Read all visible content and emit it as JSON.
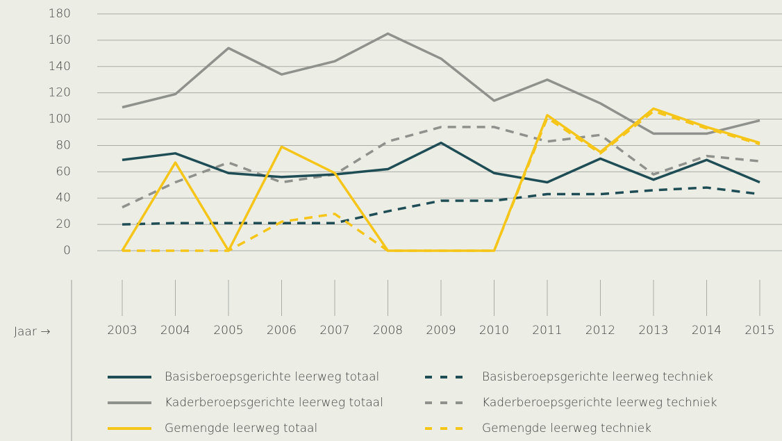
{
  "chart_data": {
    "type": "line",
    "x_label": "Jaar →",
    "categories": [
      "2003",
      "2004",
      "2005",
      "2006",
      "2007",
      "2008",
      "2009",
      "2010",
      "2011",
      "2012",
      "2013",
      "2014",
      "2015"
    ],
    "ylim": [
      0,
      180
    ],
    "yticks": [
      0,
      20,
      40,
      60,
      80,
      100,
      120,
      140,
      160,
      180
    ],
    "grid": true,
    "series": [
      {
        "name": "Basisberoepsgerichte leerweg totaal",
        "color": "#1f4d55",
        "dashed": false,
        "values": [
          69,
          74,
          59,
          56,
          58,
          62,
          82,
          59,
          52,
          70,
          54,
          69,
          52
        ]
      },
      {
        "name": "Basisberoepsgerichte leerweg techniek",
        "color": "#1f4d55",
        "dashed": true,
        "values": [
          20,
          21,
          21,
          21,
          21,
          30,
          38,
          38,
          43,
          43,
          46,
          48,
          43
        ]
      },
      {
        "name": "Kaderberoepsgerichte leerweg totaal",
        "color": "#8f918c",
        "dashed": false,
        "values": [
          109,
          119,
          154,
          134,
          144,
          165,
          146,
          114,
          130,
          112,
          89,
          89,
          99
        ]
      },
      {
        "name": "Kaderberoepsgerichte leerweg techniek",
        "color": "#8f918c",
        "dashed": true,
        "values": [
          33,
          52,
          67,
          52,
          58,
          83,
          94,
          94,
          83,
          88,
          58,
          72,
          68
        ]
      },
      {
        "name": "Gemengde leerweg totaal",
        "color": "#f6c519",
        "dashed": false,
        "values": [
          0,
          67,
          0,
          79,
          59,
          0,
          0,
          0,
          103,
          75,
          108,
          94,
          82
        ]
      },
      {
        "name": "Gemengde leerweg techniek",
        "color": "#f6c519",
        "dashed": true,
        "values": [
          0,
          0,
          0,
          22,
          28,
          0,
          0,
          0,
          101,
          74,
          106,
          93,
          81
        ]
      }
    ]
  }
}
